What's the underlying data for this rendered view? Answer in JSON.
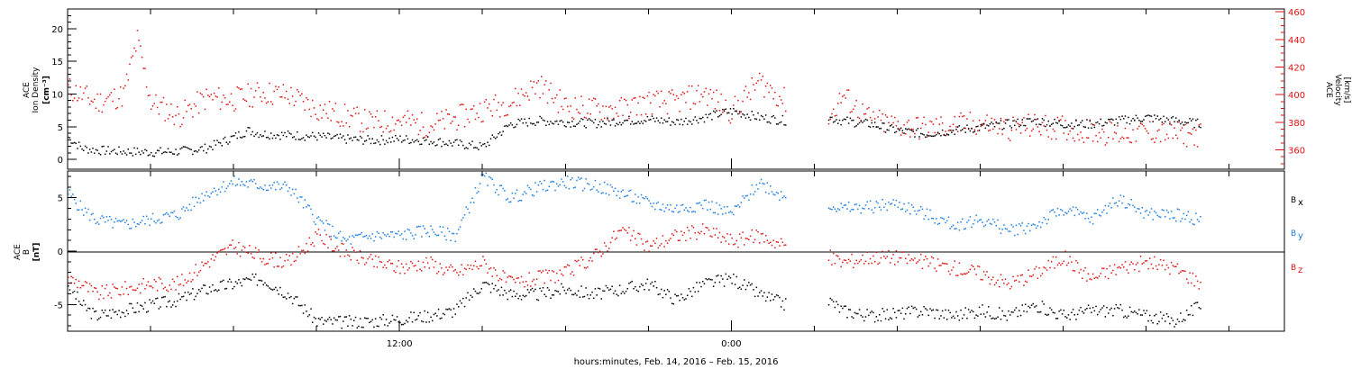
{
  "chart_data": [
    {
      "type": "scatter",
      "panel": "top",
      "ylabel_left": [
        "ACE",
        "Ion Density",
        "[cm⁻³]"
      ],
      "ylabel_right": [
        "ACE",
        "Velocity",
        "[km/s]"
      ],
      "yleft_ticks": [
        "0",
        "5",
        "10",
        "15",
        "20"
      ],
      "ylim_left": [
        -1.5,
        23
      ],
      "yright_ticks": [
        "360",
        "380",
        "400",
        "420",
        "440",
        "460"
      ],
      "ylim_right": [
        346,
        462
      ],
      "series": [
        {
          "axis": "left",
          "color": "#000000",
          "points": [
            [
              0,
              3.5
            ],
            [
              0.5,
              1.8
            ],
            [
              1,
              1.5
            ],
            [
              2,
              1.3
            ],
            [
              3,
              1.2
            ],
            [
              4,
              1.3
            ],
            [
              5,
              1.8
            ],
            [
              6,
              3.5
            ],
            [
              6.5,
              4.5
            ],
            [
              7,
              4.0
            ],
            [
              8,
              3.8
            ],
            [
              9,
              3.6
            ],
            [
              10,
              3.2
            ],
            [
              11,
              3.0
            ],
            [
              12,
              3.2
            ],
            [
              13,
              3.0
            ],
            [
              14,
              2.5
            ],
            [
              15,
              2.0
            ],
            [
              16,
              5.5
            ],
            [
              17,
              6.0
            ],
            [
              18,
              5.8
            ],
            [
              19,
              5.6
            ],
            [
              20,
              6.0
            ],
            [
              21,
              6.2
            ],
            [
              22,
              5.8
            ],
            [
              23,
              6.5
            ],
            [
              24,
              7.5
            ],
            [
              25,
              6.5
            ],
            [
              26,
              6.0
            ],
            [
              27.5,
              6.5
            ],
            [
              28,
              6.0
            ],
            [
              29,
              5.5
            ],
            [
              30,
              4.5
            ],
            [
              31,
              4.0
            ],
            [
              32,
              4.5
            ],
            [
              33,
              5.0
            ],
            [
              34,
              5.5
            ],
            [
              35,
              6.0
            ],
            [
              36,
              5.5
            ],
            [
              37,
              5.5
            ],
            [
              38,
              6.0
            ],
            [
              39,
              6.5
            ],
            [
              40,
              6.0
            ],
            [
              41,
              5.5
            ]
          ]
        },
        {
          "axis": "right",
          "color": "#dd1111",
          "points": [
            [
              0,
              405
            ],
            [
              0.5,
              400
            ],
            [
              1,
              395
            ],
            [
              2,
              400
            ],
            [
              2.5,
              440
            ],
            [
              3,
              395
            ],
            [
              4,
              385
            ],
            [
              5,
              398
            ],
            [
              6,
              397
            ],
            [
              7,
              402
            ],
            [
              8,
              400
            ],
            [
              9,
              390
            ],
            [
              10,
              385
            ],
            [
              11,
              380
            ],
            [
              12,
              382
            ],
            [
              13,
              378
            ],
            [
              14,
              383
            ],
            [
              15,
              390
            ],
            [
              16,
              395
            ],
            [
              17,
              408
            ],
            [
              18,
              392
            ],
            [
              19,
              390
            ],
            [
              20,
              390
            ],
            [
              21,
              395
            ],
            [
              22,
              395
            ],
            [
              23,
              402
            ],
            [
              24,
              388
            ],
            [
              25,
              410
            ],
            [
              26,
              395
            ],
            [
              27.5,
              382
            ],
            [
              28,
              400
            ],
            [
              29,
              382
            ],
            [
              30,
              378
            ],
            [
              31,
              376
            ],
            [
              32,
              378
            ],
            [
              33,
              380
            ],
            [
              34,
              376
            ],
            [
              35,
              378
            ],
            [
              36,
              376
            ],
            [
              37,
              374
            ],
            [
              38,
              372
            ],
            [
              39,
              374
            ],
            [
              40,
              372
            ],
            [
              41,
              371
            ]
          ]
        }
      ],
      "legend": [
        "ACE Ion Density",
        "ACE Velocity"
      ]
    },
    {
      "type": "scatter",
      "panel": "bottom",
      "ylabel_left": [
        "ACE",
        "B",
        "[nT]"
      ],
      "yleft_ticks": [
        "-5",
        "0",
        "5"
      ],
      "ylim_left": [
        -7.5,
        7.5
      ],
      "series": [
        {
          "name": "Bx",
          "color": "#000000",
          "points": [
            [
              0,
              -3.0
            ],
            [
              0.5,
              -5.0
            ],
            [
              1,
              -6.0
            ],
            [
              2,
              -5.5
            ],
            [
              3,
              -5.0
            ],
            [
              4,
              -4.5
            ],
            [
              5,
              -3.5
            ],
            [
              6,
              -3.0
            ],
            [
              7,
              -2.5
            ],
            [
              8,
              -4.0
            ],
            [
              9,
              -6.5
            ],
            [
              10,
              -6.6
            ],
            [
              11,
              -6.5
            ],
            [
              12,
              -6.3
            ],
            [
              13,
              -6.0
            ],
            [
              14,
              -5.5
            ],
            [
              15,
              -3.0
            ],
            [
              16,
              -4.0
            ],
            [
              17,
              -4.0
            ],
            [
              18,
              -3.5
            ],
            [
              19,
              -4.0
            ],
            [
              20,
              -3.5
            ],
            [
              21,
              -3.0
            ],
            [
              22,
              -4.5
            ],
            [
              23,
              -3.0
            ],
            [
              24,
              -2.5
            ],
            [
              25,
              -4.0
            ],
            [
              26,
              -5.0
            ],
            [
              27.5,
              -4.5
            ],
            [
              28,
              -5.5
            ],
            [
              29,
              -6.0
            ],
            [
              30,
              -5.8
            ],
            [
              31,
              -5.5
            ],
            [
              32,
              -6.0
            ],
            [
              33,
              -5.5
            ],
            [
              34,
              -6.0
            ],
            [
              35,
              -5.0
            ],
            [
              36,
              -6.0
            ],
            [
              37,
              -5.5
            ],
            [
              38,
              -5.5
            ],
            [
              39,
              -6.0
            ],
            [
              40,
              -6.5
            ],
            [
              41,
              -5.0
            ]
          ]
        },
        {
          "name": "By",
          "color": "#1a7be0",
          "points": [
            [
              0,
              5.5
            ],
            [
              0.5,
              4.0
            ],
            [
              1,
              3.0
            ],
            [
              2,
              2.5
            ],
            [
              3,
              3.0
            ],
            [
              4,
              3.5
            ],
            [
              5,
              5.5
            ],
            [
              6,
              6.5
            ],
            [
              7,
              6.2
            ],
            [
              8,
              6.0
            ],
            [
              9,
              3.0
            ],
            [
              10,
              1.0
            ],
            [
              11,
              1.5
            ],
            [
              12,
              1.5
            ],
            [
              13,
              2.0
            ],
            [
              14,
              1.5
            ],
            [
              15,
              7.0
            ],
            [
              16,
              5.0
            ],
            [
              17,
              6.0
            ],
            [
              18,
              6.5
            ],
            [
              19,
              6.2
            ],
            [
              20,
              5.5
            ],
            [
              21,
              4.5
            ],
            [
              22,
              4.0
            ],
            [
              23,
              4.5
            ],
            [
              24,
              3.5
            ],
            [
              25,
              6.5
            ],
            [
              26,
              5.0
            ],
            [
              27.5,
              4.5
            ],
            [
              28,
              4.0
            ],
            [
              29,
              4.2
            ],
            [
              30,
              4.5
            ],
            [
              31,
              3.5
            ],
            [
              32,
              2.5
            ],
            [
              33,
              3.0
            ],
            [
              34,
              2.0
            ],
            [
              35,
              2.5
            ],
            [
              36,
              4.0
            ],
            [
              37,
              3.0
            ],
            [
              38,
              5.0
            ],
            [
              39,
              3.5
            ],
            [
              40,
              3.5
            ],
            [
              41,
              3.0
            ]
          ]
        },
        {
          "name": "Bz",
          "color": "#dd1111",
          "points": [
            [
              0,
              -2.5
            ],
            [
              0.5,
              -3.0
            ],
            [
              1,
              -4.0
            ],
            [
              2,
              -3.5
            ],
            [
              3,
              -3.0
            ],
            [
              4,
              -3.0
            ],
            [
              5,
              -1.0
            ],
            [
              6,
              0.5
            ],
            [
              7,
              -0.5
            ],
            [
              8,
              -1.0
            ],
            [
              9,
              1.5
            ],
            [
              10,
              0.0
            ],
            [
              11,
              -1.0
            ],
            [
              12,
              -1.5
            ],
            [
              13,
              -1.0
            ],
            [
              14,
              -2.0
            ],
            [
              15,
              -1.0
            ],
            [
              16,
              -3.0
            ],
            [
              17,
              -2.5
            ],
            [
              18,
              -2.0
            ],
            [
              19,
              -0.5
            ],
            [
              20,
              2.0
            ],
            [
              21,
              0.5
            ],
            [
              22,
              1.5
            ],
            [
              23,
              2.0
            ],
            [
              24,
              1.0
            ],
            [
              25,
              1.5
            ],
            [
              26,
              0.5
            ],
            [
              27.5,
              -0.5
            ],
            [
              28,
              -1.0
            ],
            [
              29,
              -0.5
            ],
            [
              30,
              -0.5
            ],
            [
              31,
              -1.0
            ],
            [
              32,
              -1.5
            ],
            [
              33,
              -2.0
            ],
            [
              34,
              -3.0
            ],
            [
              35,
              -2.0
            ],
            [
              36,
              -0.5
            ],
            [
              37,
              -2.5
            ],
            [
              38,
              -1.5
            ],
            [
              39,
              -1.0
            ],
            [
              40,
              -1.5
            ],
            [
              41,
              -3.0
            ]
          ]
        }
      ],
      "legend": [
        "Bx",
        "By",
        "Bz"
      ]
    }
  ],
  "xaxis": {
    "label": "hours:minutes, Feb. 14, 2016 – Feb. 15, 2016",
    "hour_range": [
      0,
      44
    ],
    "tick_labels": [
      {
        "hour": 12,
        "label": "12:00"
      },
      {
        "hour": 24,
        "label": "0:00"
      }
    ],
    "minor_tick_hours": [
      0,
      3,
      6,
      9,
      12,
      15,
      18,
      21,
      24,
      27,
      30,
      33,
      36,
      39,
      42
    ]
  },
  "legend_labels": {
    "bx": "B",
    "bx_sub": "x",
    "by": "B",
    "by_sub": "y",
    "bz": "B",
    "bz_sub": "z"
  },
  "colors": {
    "black": "#000000",
    "red": "#dd1111",
    "blue": "#1a7be0"
  }
}
